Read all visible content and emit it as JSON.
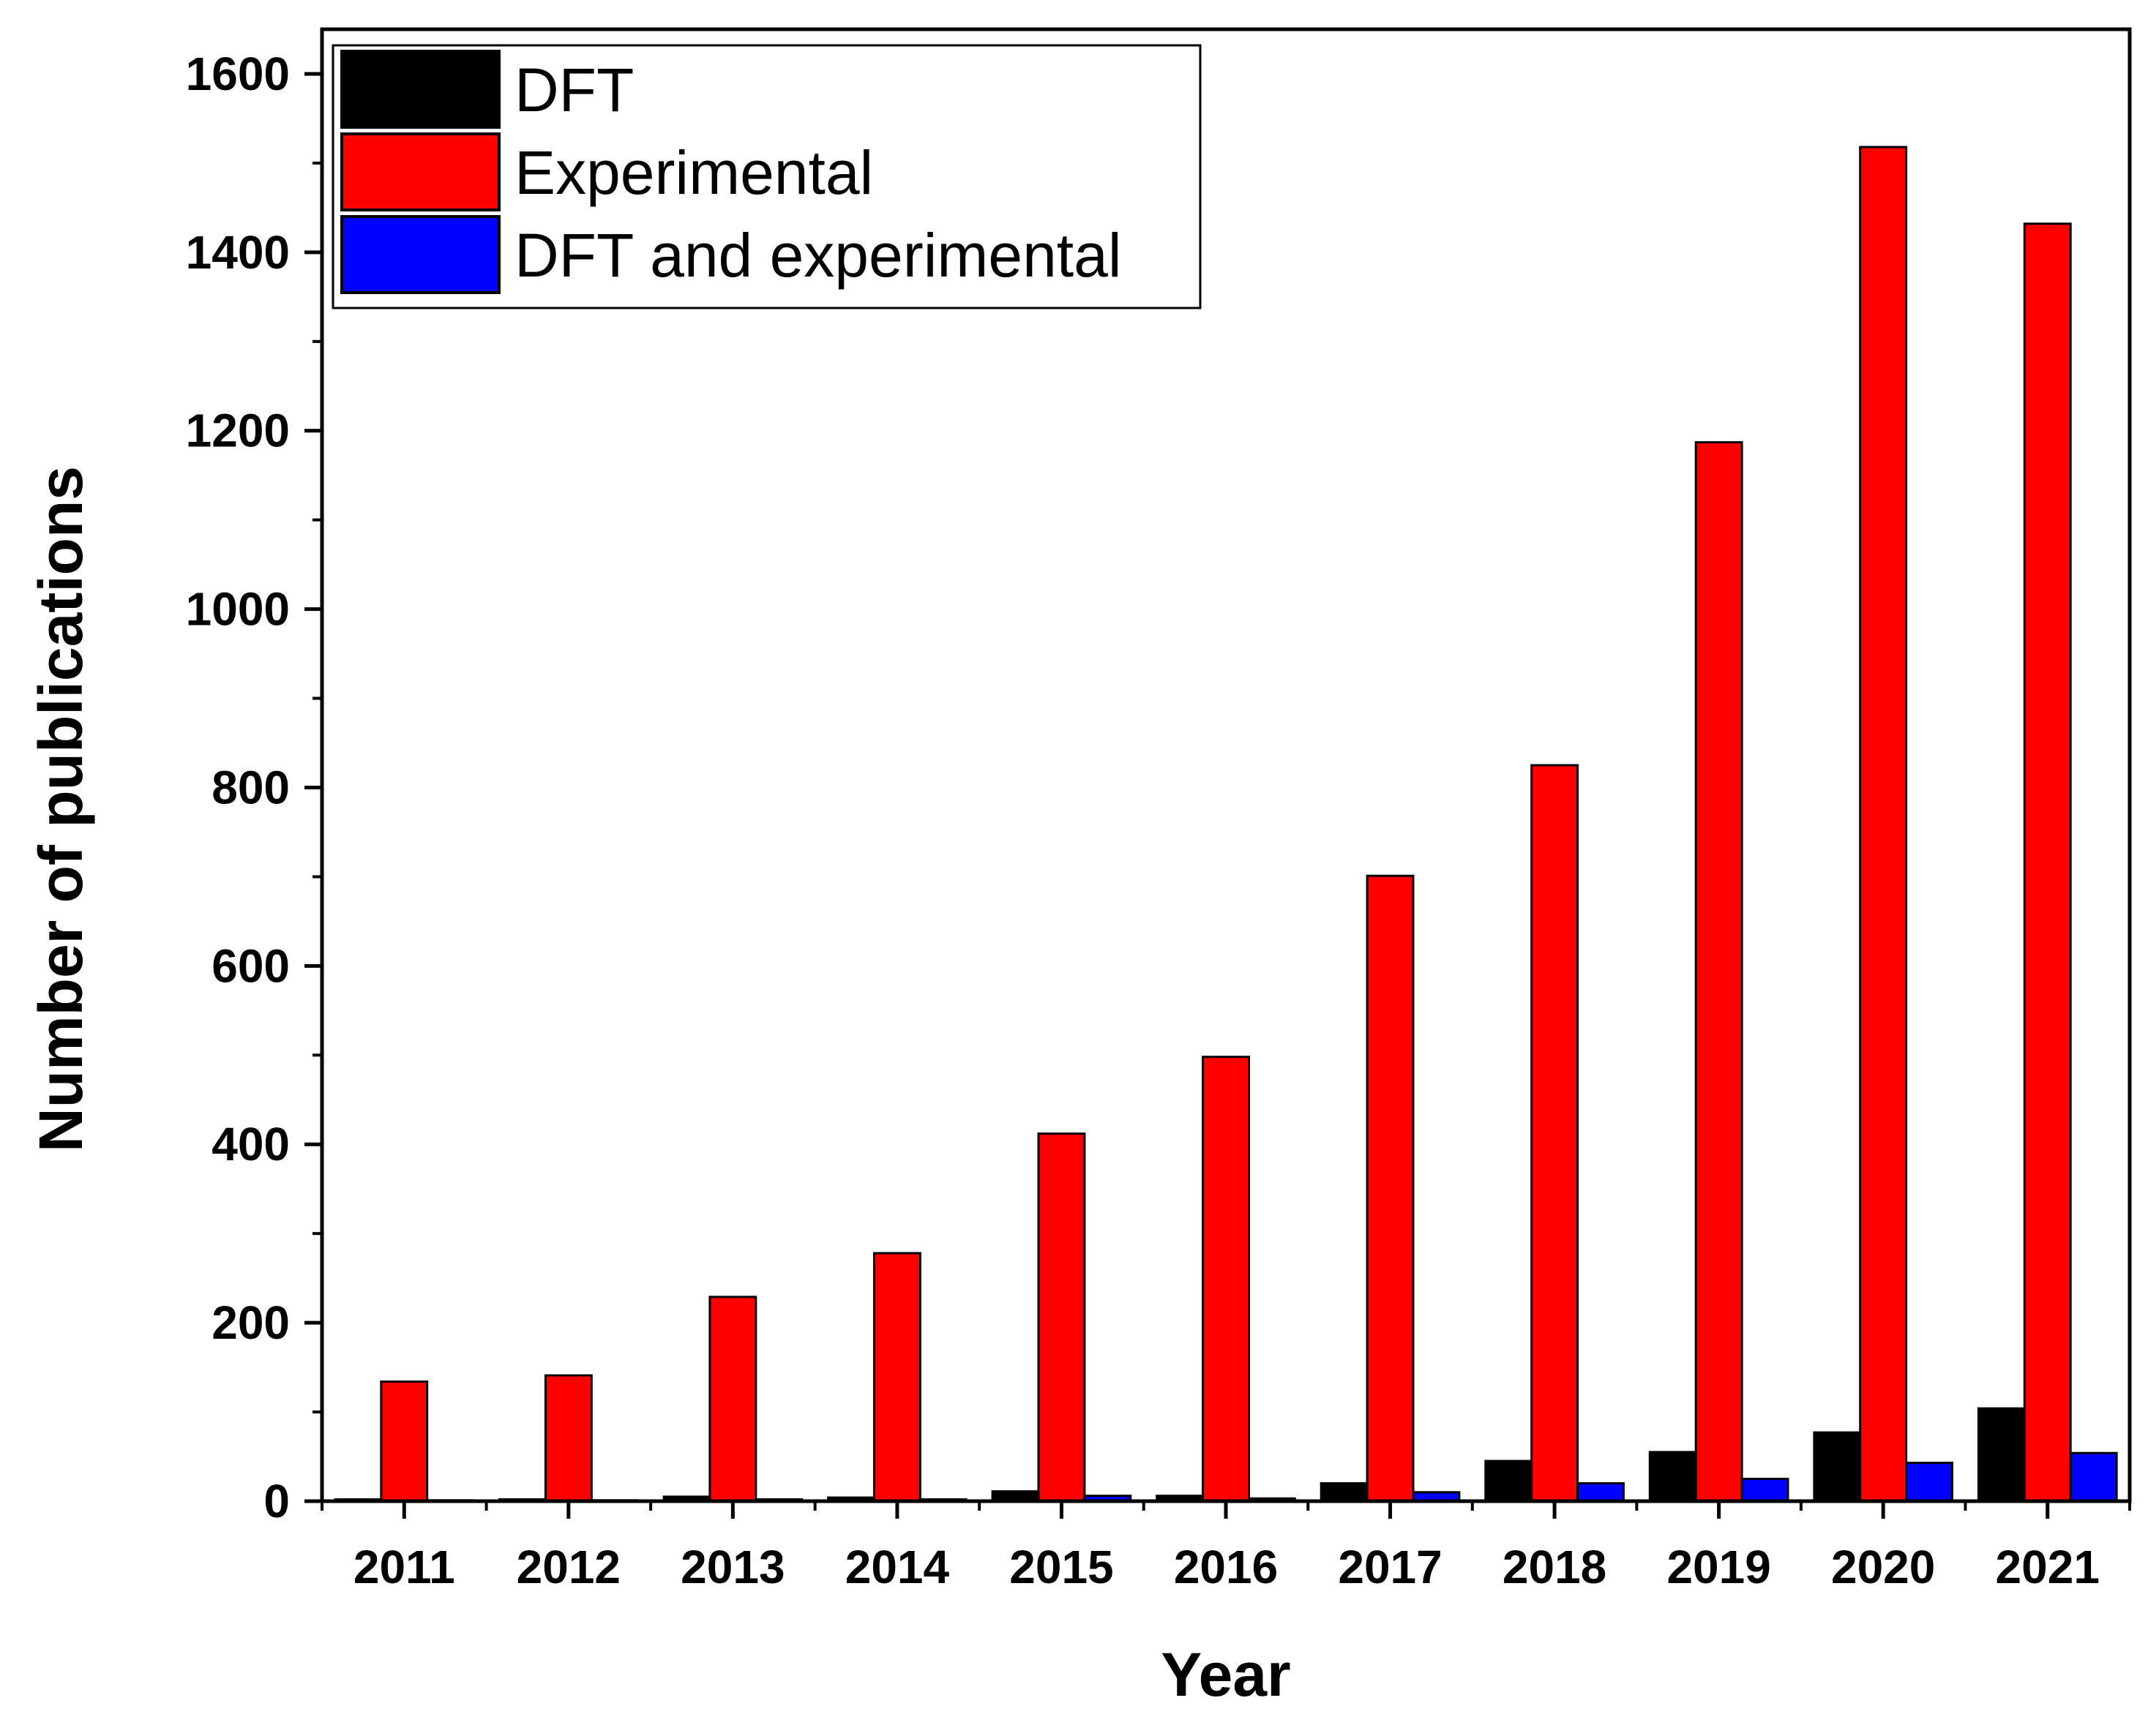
{
  "chart_data": {
    "type": "bar",
    "title": "",
    "xlabel": "Year",
    "ylabel": "Number of publications",
    "categories": [
      "2011",
      "2012",
      "2013",
      "2014",
      "2015",
      "2016",
      "2017",
      "2018",
      "2019",
      "2020",
      "2021"
    ],
    "ylim": [
      0,
      1650
    ],
    "yticks": [
      0,
      200,
      400,
      600,
      800,
      1000,
      1200,
      1400,
      1600
    ],
    "legend": "top-left",
    "grid": false,
    "series": [
      {
        "name": "DFT",
        "color": "#000000",
        "values": [
          2,
          2,
          5,
          4,
          11,
          6,
          20,
          45,
          55,
          77,
          104
        ]
      },
      {
        "name": "Experimental",
        "color": "#ff0000",
        "values": [
          134,
          141,
          229,
          278,
          412,
          498,
          701,
          825,
          1187,
          1518,
          1432
        ]
      },
      {
        "name": "DFT and experimental",
        "color": "#0000ff",
        "values": [
          1,
          1,
          2,
          2,
          6,
          3,
          10,
          20,
          25,
          43,
          54
        ]
      }
    ]
  }
}
